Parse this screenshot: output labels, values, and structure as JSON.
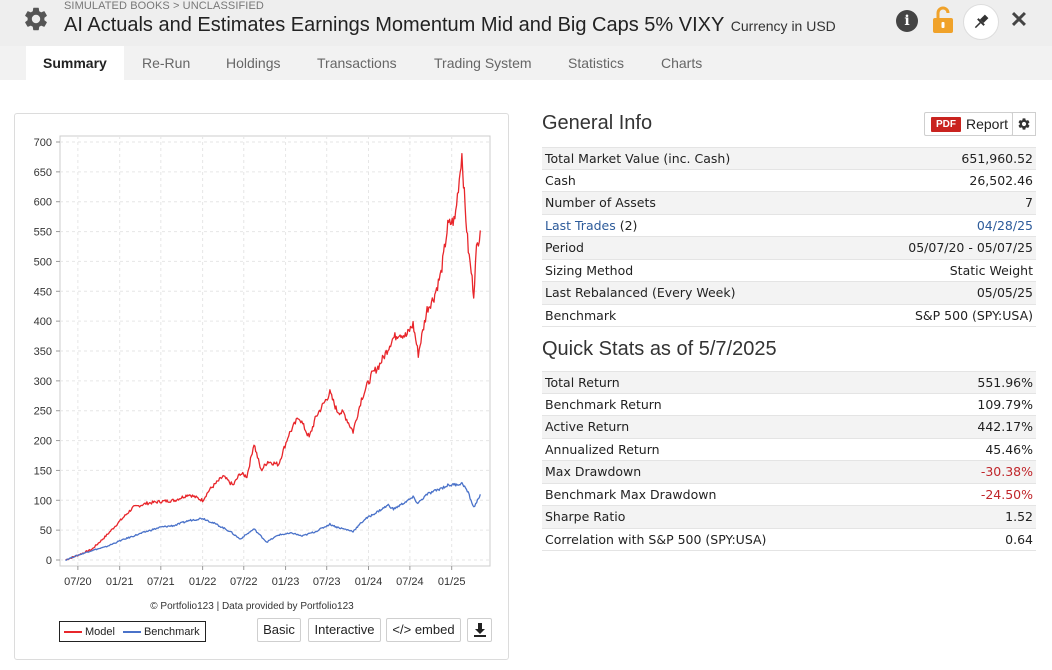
{
  "header": {
    "breadcrumb": "SIMULATED BOOKS > UNCLASSIFIED",
    "title": "AI Actuals and Estimates Earnings Momentum Mid and Big Caps 5% VIXY",
    "currency": "Currency in USD"
  },
  "tabs": [
    {
      "label": "Summary",
      "active": true
    },
    {
      "label": "Re-Run"
    },
    {
      "label": "Holdings"
    },
    {
      "label": "Transactions"
    },
    {
      "label": "Trading System"
    },
    {
      "label": "Statistics"
    },
    {
      "label": "Charts"
    }
  ],
  "chart_panel": {
    "credit": "© Portfolio123 | Data provided by Portfolio123",
    "buttons": {
      "basic": "Basic",
      "interactive": "Interactive",
      "embed": "</> embed"
    }
  },
  "chart_data": {
    "type": "line",
    "title": "",
    "xlabel": "",
    "ylabel": "",
    "ylim": [
      0,
      700
    ],
    "yticks": [
      0,
      50,
      100,
      150,
      200,
      250,
      300,
      350,
      400,
      450,
      500,
      550,
      600,
      650,
      700
    ],
    "xticks": [
      "07/20",
      "01/21",
      "07/21",
      "01/22",
      "07/22",
      "01/23",
      "07/23",
      "01/24",
      "07/24",
      "01/25"
    ],
    "grid": true,
    "legend_placement": "bottom-left",
    "series": [
      {
        "name": "Model",
        "color": "#e8262b",
        "points": [
          [
            "2020-05-07",
            0
          ],
          [
            "2020-07-01",
            8
          ],
          [
            "2020-09-01",
            18
          ],
          [
            "2020-11-01",
            40
          ],
          [
            "2021-01-01",
            65
          ],
          [
            "2021-03-01",
            88
          ],
          [
            "2021-05-01",
            95
          ],
          [
            "2021-07-01",
            98
          ],
          [
            "2021-09-01",
            100
          ],
          [
            "2021-11-01",
            110
          ],
          [
            "2022-01-01",
            100
          ],
          [
            "2022-02-01",
            118
          ],
          [
            "2022-04-01",
            140
          ],
          [
            "2022-05-15",
            125
          ],
          [
            "2022-06-15",
            145
          ],
          [
            "2022-07-15",
            140
          ],
          [
            "2022-08-15",
            195
          ],
          [
            "2022-09-15",
            150
          ],
          [
            "2022-10-15",
            165
          ],
          [
            "2022-12-01",
            160
          ],
          [
            "2023-01-15",
            210
          ],
          [
            "2023-03-01",
            240
          ],
          [
            "2023-04-15",
            205
          ],
          [
            "2023-05-15",
            240
          ],
          [
            "2023-06-15",
            260
          ],
          [
            "2023-07-15",
            280
          ],
          [
            "2023-08-15",
            250
          ],
          [
            "2023-09-15",
            245
          ],
          [
            "2023-10-25",
            215
          ],
          [
            "2023-12-01",
            270
          ],
          [
            "2024-01-15",
            310
          ],
          [
            "2024-02-15",
            325
          ],
          [
            "2024-03-15",
            345
          ],
          [
            "2024-04-15",
            370
          ],
          [
            "2024-05-15",
            380
          ],
          [
            "2024-06-15",
            375
          ],
          [
            "2024-07-15",
            395
          ],
          [
            "2024-08-07",
            345
          ],
          [
            "2024-09-15",
            420
          ],
          [
            "2024-10-15",
            440
          ],
          [
            "2024-11-15",
            480
          ],
          [
            "2024-12-15",
            560
          ],
          [
            "2025-01-15",
            570
          ],
          [
            "2025-02-15",
            680
          ],
          [
            "2025-03-01",
            590
          ],
          [
            "2025-03-15",
            520
          ],
          [
            "2025-04-01",
            470
          ],
          [
            "2025-04-08",
            445
          ],
          [
            "2025-04-20",
            520
          ],
          [
            "2025-05-07",
            552
          ]
        ]
      },
      {
        "name": "Benchmark",
        "color": "#4a72c9",
        "points": [
          [
            "2020-05-07",
            0
          ],
          [
            "2020-07-01",
            8
          ],
          [
            "2020-09-01",
            16
          ],
          [
            "2020-11-01",
            22
          ],
          [
            "2021-01-01",
            32
          ],
          [
            "2021-03-01",
            40
          ],
          [
            "2021-05-01",
            48
          ],
          [
            "2021-07-01",
            55
          ],
          [
            "2021-09-01",
            58
          ],
          [
            "2021-11-01",
            66
          ],
          [
            "2022-01-01",
            70
          ],
          [
            "2022-03-01",
            60
          ],
          [
            "2022-05-01",
            48
          ],
          [
            "2022-06-15",
            35
          ],
          [
            "2022-08-15",
            52
          ],
          [
            "2022-10-10",
            30
          ],
          [
            "2022-12-01",
            42
          ],
          [
            "2023-02-01",
            45
          ],
          [
            "2023-03-15",
            40
          ],
          [
            "2023-05-15",
            48
          ],
          [
            "2023-07-15",
            60
          ],
          [
            "2023-08-15",
            55
          ],
          [
            "2023-10-25",
            48
          ],
          [
            "2023-12-15",
            68
          ],
          [
            "2024-02-15",
            82
          ],
          [
            "2024-03-28",
            92
          ],
          [
            "2024-04-20",
            85
          ],
          [
            "2024-06-15",
            98
          ],
          [
            "2024-07-15",
            105
          ],
          [
            "2024-08-05",
            95
          ],
          [
            "2024-09-15",
            110
          ],
          [
            "2024-11-15",
            120
          ],
          [
            "2024-12-15",
            125
          ],
          [
            "2025-02-19",
            128
          ],
          [
            "2025-03-15",
            112
          ],
          [
            "2025-04-08",
            88
          ],
          [
            "2025-04-25",
            100
          ],
          [
            "2025-05-07",
            110
          ]
        ]
      }
    ]
  },
  "general_info": {
    "title": "General Info",
    "report_label": "Report",
    "pdf_label": "PDF",
    "rows": [
      {
        "label": "Total Market Value (inc. Cash)",
        "value": "651,960.52"
      },
      {
        "label": "Cash",
        "value": "26,502.46"
      },
      {
        "label": "Number of Assets",
        "value": "7"
      },
      {
        "label": "Last Trades",
        "label_suffix": " (2)",
        "value": "04/28/25",
        "link": true
      },
      {
        "label": "Period",
        "value": "05/07/20 - 05/07/25"
      },
      {
        "label": "Sizing Method",
        "value": "Static Weight"
      },
      {
        "label": "Last Rebalanced (Every Week)",
        "value": "05/05/25"
      },
      {
        "label": "Benchmark",
        "value": "S&P 500 (SPY:USA)"
      }
    ]
  },
  "quick_stats": {
    "title": "Quick Stats as of 5/7/2025",
    "rows": [
      {
        "label": "Total Return",
        "value": "551.96%"
      },
      {
        "label": "Benchmark Return",
        "value": "109.79%"
      },
      {
        "label": "Active Return",
        "value": "442.17%"
      },
      {
        "label": "Annualized Return",
        "value": "45.46%"
      },
      {
        "label": "Max Drawdown",
        "value": "-30.38%",
        "negative": true
      },
      {
        "label": "Benchmark Max Drawdown",
        "value": "-24.50%",
        "negative": true
      },
      {
        "label": "Sharpe Ratio",
        "value": "1.52"
      },
      {
        "label": "Correlation with S&P 500 (SPY:USA)",
        "value": "0.64"
      }
    ]
  }
}
